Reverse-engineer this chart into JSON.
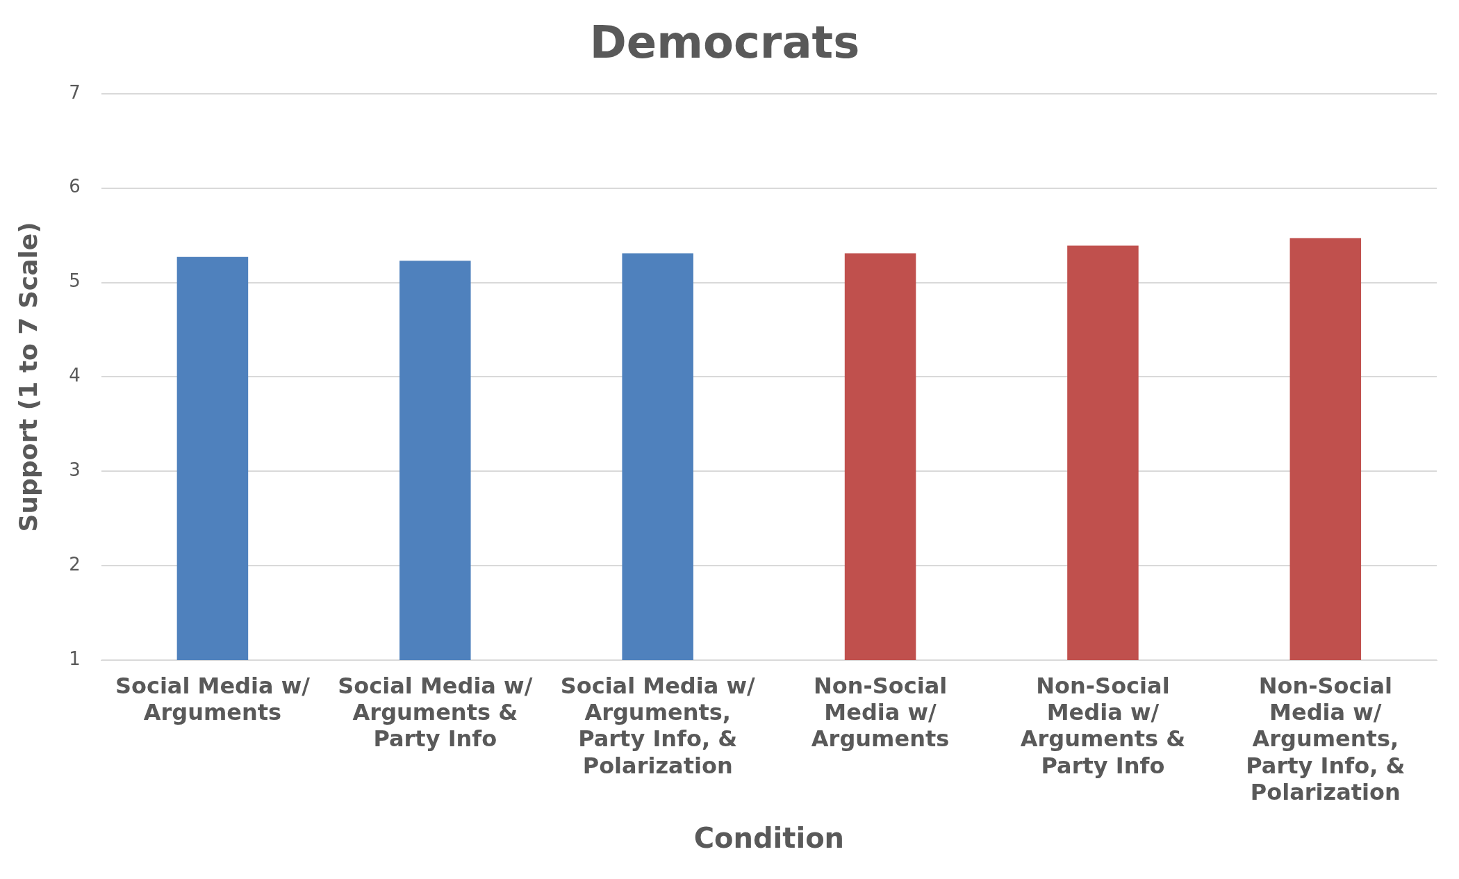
{
  "chart_data": {
    "type": "bar",
    "title": "Democrats",
    "xlabel": "Condition",
    "ylabel": "Support (1 to 7 Scale)",
    "categories": [
      "Social Media w/ Arguments",
      "Social Media w/ Arguments & Party Info",
      "Social Media w/ Arguments, Party Info, & Polarization",
      "Non-Social Media w/ Arguments",
      "Non-Social Media w/ Arguments & Party Info",
      "Non-Social Media w/ Arguments, Party Info, & Polarization"
    ],
    "values": [
      5.27,
      5.23,
      5.31,
      5.31,
      5.39,
      5.47
    ],
    "colors": [
      "#4f81bd",
      "#4f81bd",
      "#4f81bd",
      "#c0504d",
      "#c0504d",
      "#c0504d"
    ],
    "ylim": [
      1,
      7
    ],
    "yticks": [
      1,
      2,
      3,
      4,
      5,
      6,
      7
    ],
    "grid": "y",
    "legend": false
  }
}
